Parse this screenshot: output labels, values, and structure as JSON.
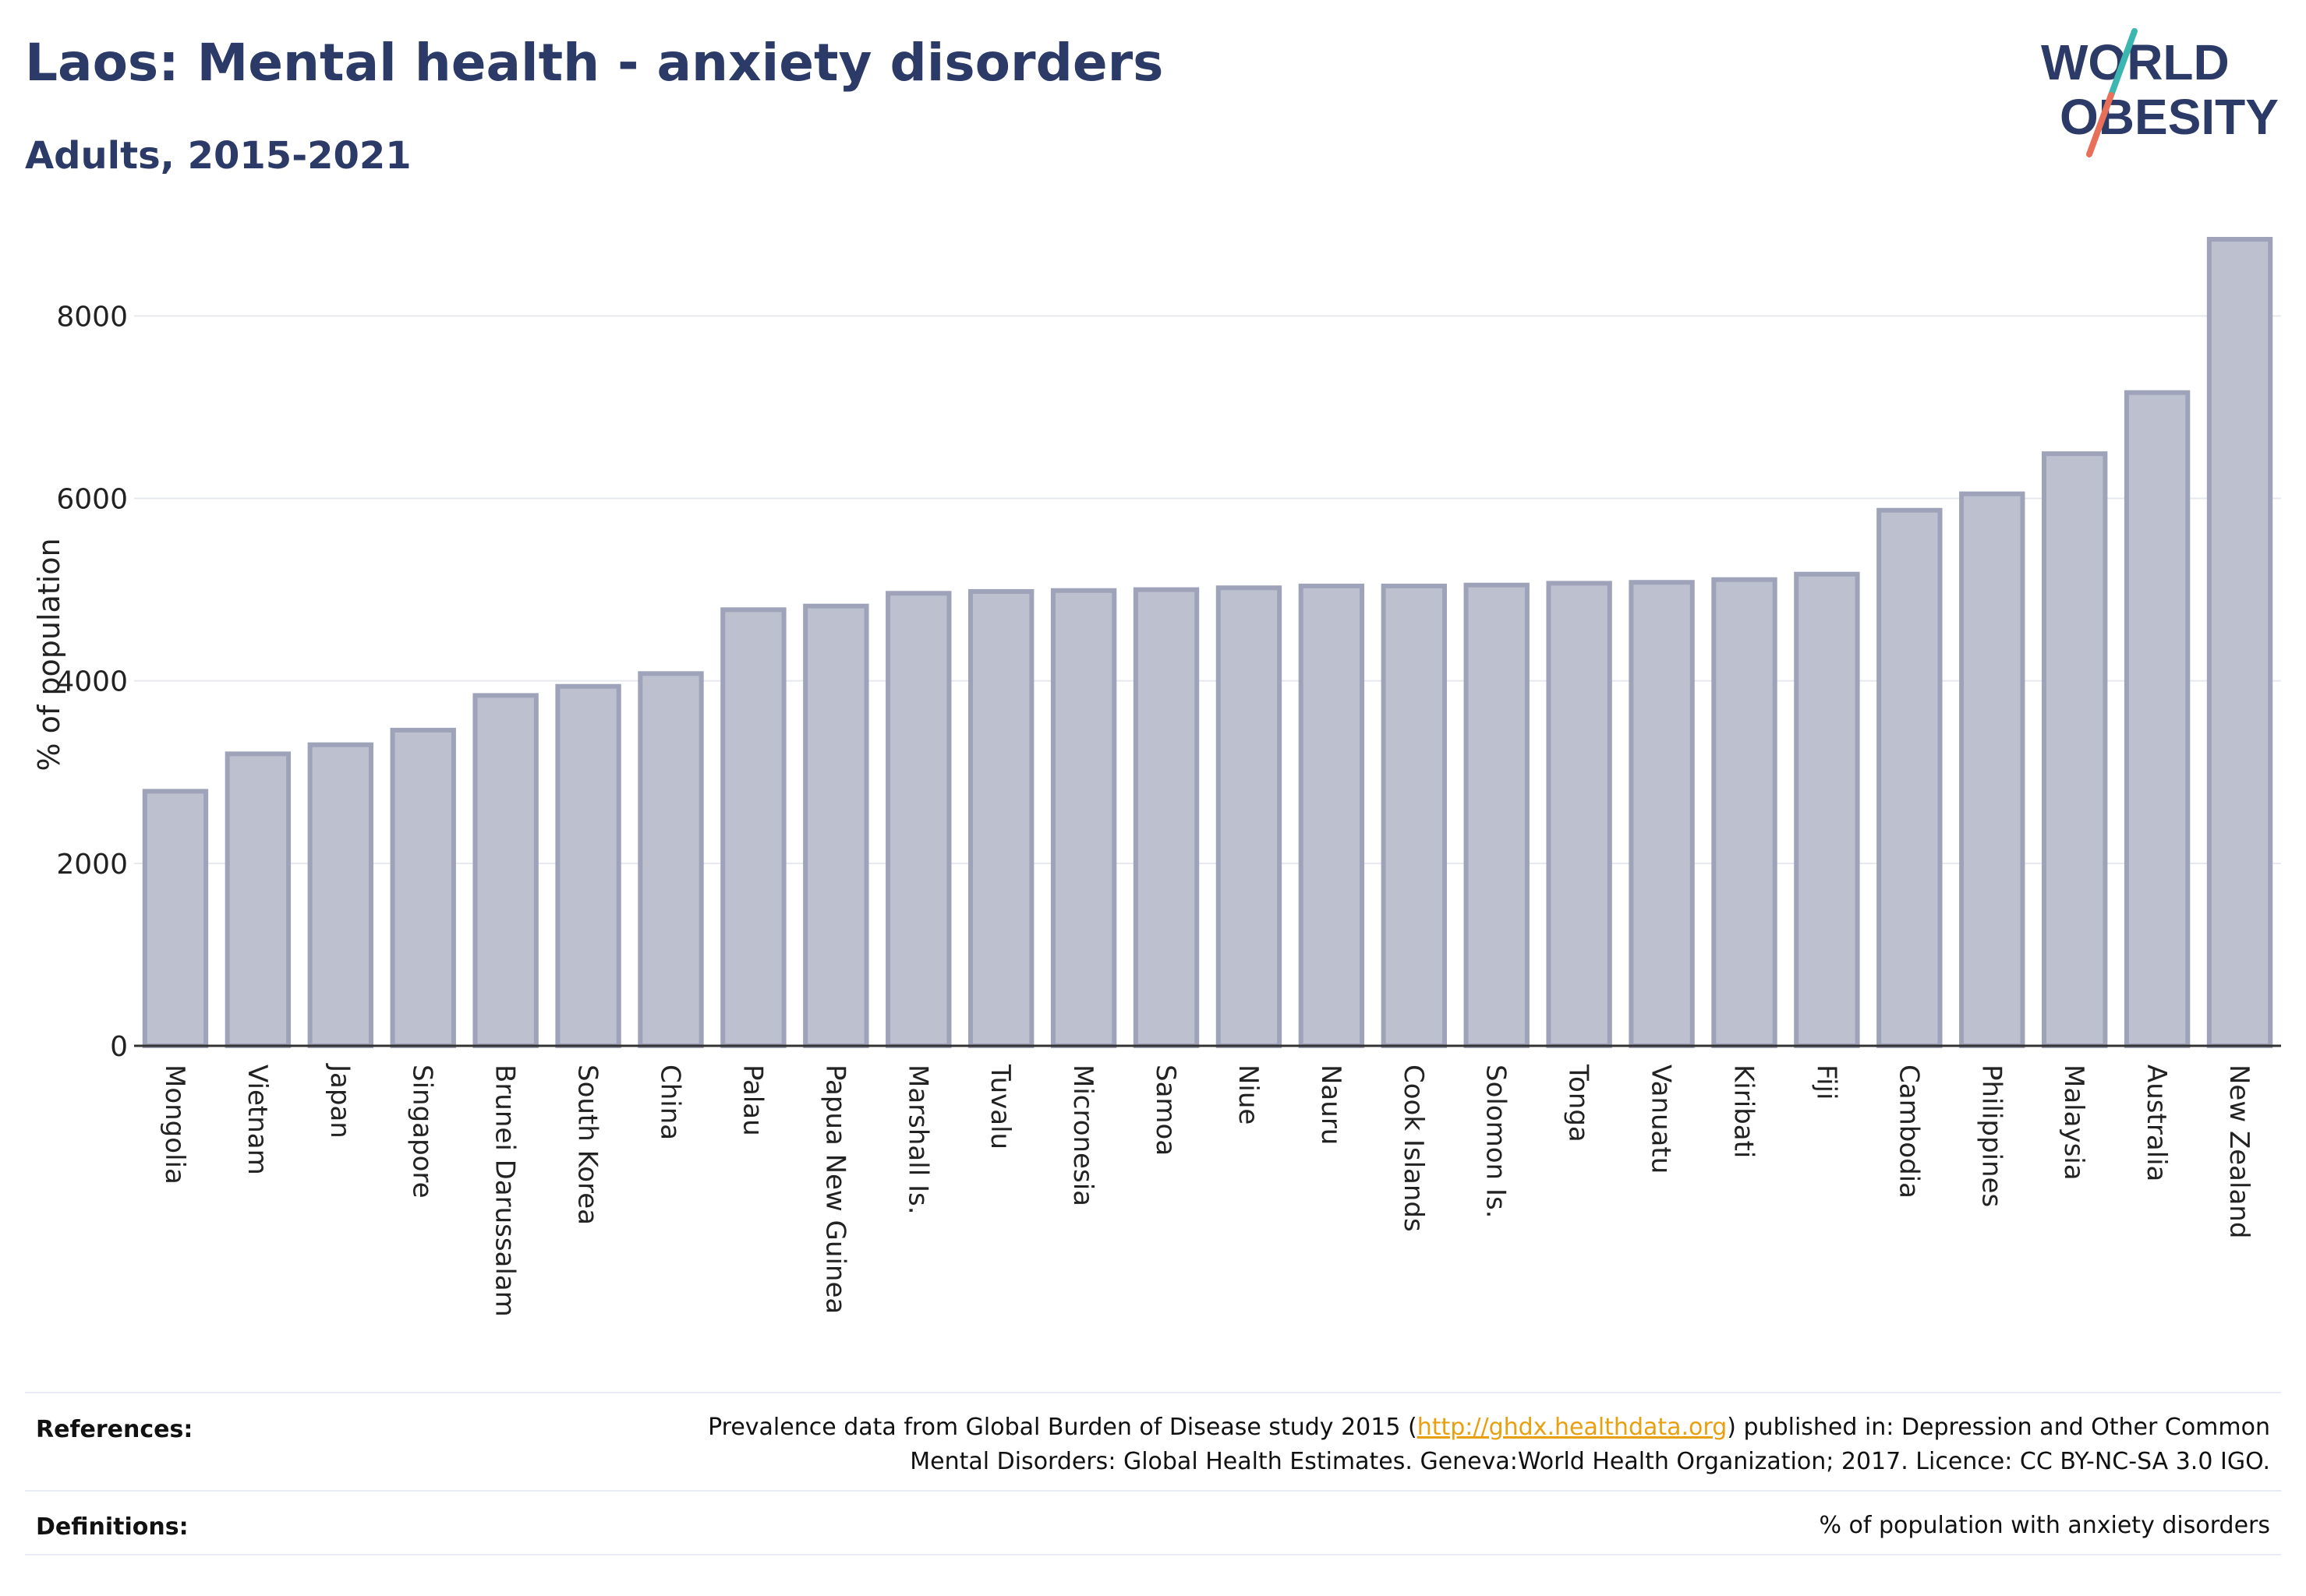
{
  "header": {
    "title": "Laos: Mental health - anxiety disorders",
    "subtitle": "Adults, 2015-2021"
  },
  "logo": {
    "line1": "WORLD",
    "line2": "OBESITY",
    "colors": {
      "text": "#2b3a66",
      "slash_top": "#3cb6b0",
      "slash_bottom": "#e8705a"
    }
  },
  "chart_data": {
    "type": "bar",
    "ylabel": "% of population",
    "xlabel": "",
    "ylim": [
      0,
      8900
    ],
    "yticks": [
      0,
      2000,
      4000,
      6000,
      8000
    ],
    "grid": true,
    "bar_fill": "#bcc0cf",
    "bar_stroke": "#9ea3b9",
    "categories": [
      "Mongolia",
      "Vietnam",
      "Japan",
      "Singapore",
      "Brunei Darussalam",
      "South Korea",
      "China",
      "Palau",
      "Papua New Guinea",
      "Marshall Is.",
      "Tuvalu",
      "Micronesia",
      "Samoa",
      "Niue",
      "Nauru",
      "Cook Islands",
      "Solomon Is.",
      "Tonga",
      "Vanuatu",
      "Kiribati",
      "Fiji",
      "Cambodia",
      "Philippines",
      "Malaysia",
      "Australia",
      "New Zealand"
    ],
    "values": [
      2790,
      3200,
      3300,
      3460,
      3840,
      3940,
      4080,
      4780,
      4820,
      4960,
      4980,
      4990,
      5000,
      5020,
      5040,
      5040,
      5050,
      5070,
      5080,
      5110,
      5170,
      5870,
      6050,
      6490,
      7160,
      8840
    ]
  },
  "footer": {
    "references_label": "References:",
    "references_pre": "Prevalence data from Global Burden of Disease study 2015 (",
    "references_link": "http://ghdx.healthdata.org",
    "references_post": ") published in: Depression and Other Common",
    "references_line2": "Mental Disorders: Global Health Estimates. Geneva:World Health Organization; 2017. Licence: CC BY-NC-SA 3.0 IGO.",
    "definitions_label": "Definitions:",
    "definitions_text": "% of population with anxiety disorders"
  }
}
